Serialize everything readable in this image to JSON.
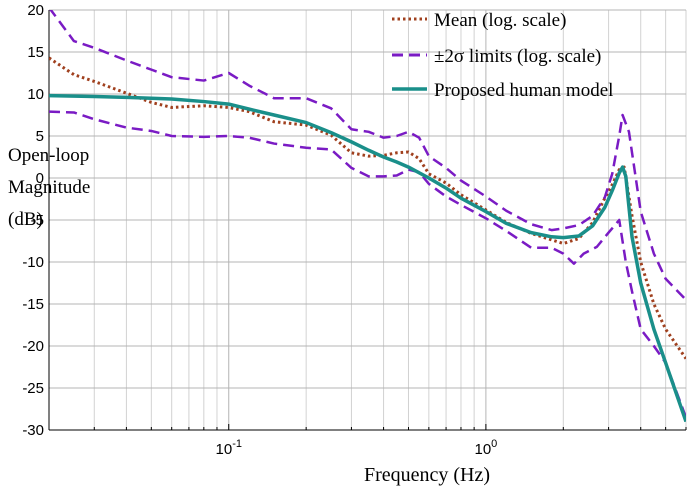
{
  "chart_data": {
    "type": "line",
    "title": "",
    "xlabel": "Frequency (Hz)",
    "ylabel_lines": [
      "Open-loop",
      "Magnitude",
      "(dB)"
    ],
    "xscale": "log",
    "xlim": [
      0.02,
      6.0
    ],
    "ylim": [
      -30,
      20
    ],
    "grid": true,
    "legend_position": "top-right",
    "yticks": [
      "20",
      "15",
      "10",
      "5",
      "0",
      "-5",
      "-10",
      "-15",
      "-20",
      "-25",
      "-30"
    ],
    "xticks": [
      {
        "base": "10",
        "exp": "-1",
        "value": 0.1
      },
      {
        "base": "10",
        "exp": "0",
        "value": 1.0
      }
    ],
    "series": [
      {
        "name": "Mean (log. scale)",
        "color": "#a0401e",
        "style": "dotted",
        "x": [
          0.02,
          0.025,
          0.03,
          0.04,
          0.05,
          0.06,
          0.08,
          0.1,
          0.12,
          0.15,
          0.2,
          0.25,
          0.3,
          0.35,
          0.4,
          0.45,
          0.5,
          0.55,
          0.6,
          0.7,
          0.8,
          1.0,
          1.2,
          1.5,
          2.0,
          2.3,
          2.6,
          2.9,
          3.1,
          3.3,
          3.45,
          3.7,
          4.0,
          4.5,
          5.0,
          6.0
        ],
        "y": [
          14.3,
          12.3,
          11.5,
          10.1,
          9.0,
          8.4,
          8.6,
          8.4,
          7.9,
          6.7,
          6.3,
          5.1,
          3.0,
          2.6,
          2.7,
          3.0,
          3.1,
          2.3,
          0.5,
          -0.6,
          -2.0,
          -3.8,
          -5.3,
          -6.6,
          -7.8,
          -7.2,
          -5.3,
          -2.4,
          -0.8,
          1.0,
          1.3,
          -4.5,
          -10.0,
          -15.0,
          -18.0,
          -21.5
        ]
      },
      {
        "name": "±2σ limits (log. scale)",
        "color": "#7a1bc4",
        "style": "dashed",
        "x": [
          0.02,
          0.025,
          0.03,
          0.04,
          0.05,
          0.06,
          0.08,
          0.1,
          0.12,
          0.15,
          0.2,
          0.25,
          0.3,
          0.35,
          0.4,
          0.45,
          0.5,
          0.55,
          0.6,
          0.7,
          0.8,
          1.0,
          1.2,
          1.5,
          1.8,
          2.0,
          2.3,
          2.6,
          2.9,
          3.1,
          3.3,
          3.4,
          3.6,
          4.0,
          4.5,
          5.0,
          6.0
        ],
        "y": [
          20.3,
          16.3,
          15.5,
          14.0,
          12.9,
          12.0,
          11.6,
          12.5,
          11.0,
          9.5,
          9.5,
          8.3,
          5.8,
          5.5,
          4.8,
          5.0,
          5.5,
          4.8,
          2.6,
          1.2,
          -0.3,
          -2.2,
          -3.9,
          -5.5,
          -6.2,
          -6.0,
          -5.6,
          -4.5,
          -2.3,
          0.5,
          5.0,
          7.5,
          5.5,
          -4.0,
          -9.0,
          -12.0,
          -14.5
        ]
      },
      {
        "name": "",
        "color": "#7a1bc4",
        "style": "dashed",
        "x": [
          0.02,
          0.025,
          0.03,
          0.04,
          0.05,
          0.06,
          0.08,
          0.1,
          0.12,
          0.15,
          0.2,
          0.25,
          0.3,
          0.35,
          0.4,
          0.45,
          0.5,
          0.55,
          0.6,
          0.7,
          0.8,
          1.0,
          1.2,
          1.5,
          1.8,
          2.0,
          2.2,
          2.4,
          2.7,
          3.0,
          3.3,
          3.5,
          3.7,
          4.0,
          4.5,
          5.0,
          6.0
        ],
        "y": [
          7.9,
          7.8,
          7.0,
          6.0,
          5.6,
          5.0,
          4.9,
          5.0,
          4.8,
          4.1,
          3.6,
          3.4,
          1.2,
          0.2,
          0.2,
          0.3,
          1.0,
          0.7,
          -0.7,
          -2.2,
          -3.2,
          -4.8,
          -6.3,
          -8.3,
          -8.3,
          -9.0,
          -10.2,
          -9.0,
          -8.2,
          -6.5,
          -5.0,
          -10.0,
          -13.5,
          -18.0,
          -20.0,
          -22.0,
          -28.5
        ]
      },
      {
        "name": "Proposed human model",
        "color": "#1a8f8a",
        "style": "solid",
        "x": [
          0.02,
          0.03,
          0.04,
          0.05,
          0.06,
          0.08,
          0.1,
          0.12,
          0.15,
          0.2,
          0.25,
          0.3,
          0.35,
          0.4,
          0.45,
          0.5,
          0.6,
          0.7,
          0.8,
          1.0,
          1.2,
          1.5,
          1.8,
          2.0,
          2.3,
          2.6,
          2.9,
          3.1,
          3.3,
          3.4,
          3.5,
          3.7,
          4.0,
          4.5,
          5.0,
          6.0
        ],
        "y": [
          9.8,
          9.7,
          9.6,
          9.5,
          9.4,
          9.1,
          8.8,
          8.2,
          7.5,
          6.6,
          5.4,
          4.3,
          3.3,
          2.5,
          1.9,
          1.3,
          0.0,
          -1.2,
          -2.4,
          -4.0,
          -5.4,
          -6.5,
          -7.0,
          -7.1,
          -6.9,
          -5.7,
          -3.5,
          -1.5,
          0.6,
          1.3,
          0.2,
          -7.0,
          -12.5,
          -18.0,
          -22.0,
          -29.0
        ]
      }
    ]
  }
}
